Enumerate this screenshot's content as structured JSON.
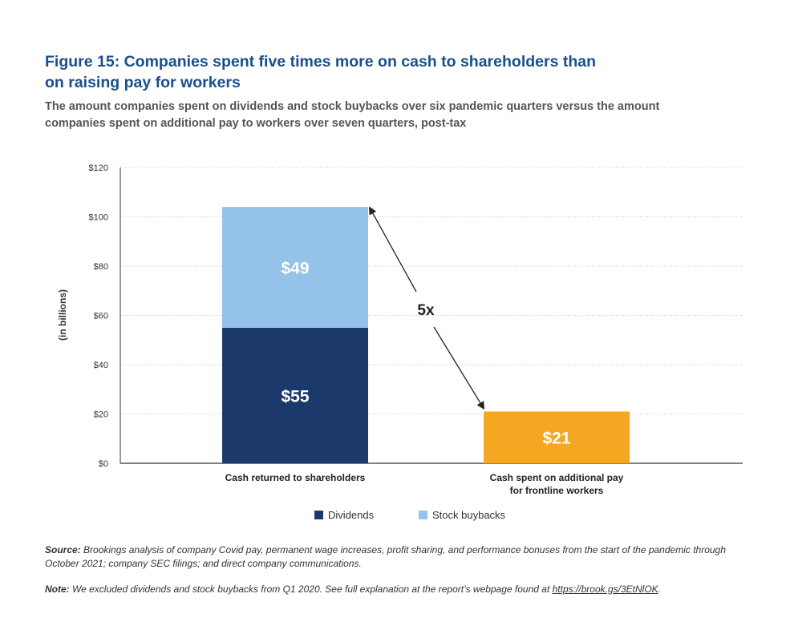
{
  "title_line1": "Figure 15: Companies spent five times more on cash to shareholders than",
  "title_line2": "on raising pay for workers",
  "subtitle_line1": "The amount companies spent on dividends and stock buybacks over six pandemic quarters versus the amount",
  "subtitle_line2": "companies spent on additional pay to workers over seven quarters, post-tax",
  "chart_data": {
    "type": "bar",
    "stacked": true,
    "title": "Figure 15: Companies spent five times more on cash to shareholders than on raising pay for workers",
    "ylabel": "(in billions)",
    "ylim": [
      0,
      120
    ],
    "yticks": [
      "$0",
      "$20",
      "$40",
      "$60",
      "$80",
      "$100",
      "$120"
    ],
    "ytick_values": [
      0,
      20,
      40,
      60,
      80,
      100,
      120
    ],
    "grid": true,
    "legend_position": "bottom-center",
    "categories": [
      [
        "Cash returned to shareholders"
      ],
      [
        "Cash spent on additional pay",
        "for frontline workers"
      ]
    ],
    "series": [
      {
        "name": "Dividends",
        "color": "#1b3a6b",
        "values": [
          55,
          null
        ],
        "labels": [
          "$55",
          ""
        ]
      },
      {
        "name": "Stock buybacks",
        "color": "#94c2e8",
        "values": [
          49,
          null
        ],
        "labels": [
          "$49",
          ""
        ]
      },
      {
        "name": "",
        "color": "#f5a623",
        "values": [
          null,
          21
        ],
        "labels": [
          "",
          "$21"
        ]
      }
    ],
    "annotation": "5x"
  },
  "source_label": "Source:",
  "source_text": " Brookings analysis of company Covid pay, permanent wage increases, profit sharing, and performance bonuses from the start of the pandemic through October 2021; company SEC filings; and direct company communications.",
  "note_label": "Note:",
  "note_text": " We excluded dividends and stock buybacks from Q1 2020. See full explanation at the report’s webpage found at ",
  "note_link": "https://brook.gs/3EtNlOK",
  "note_end": "."
}
